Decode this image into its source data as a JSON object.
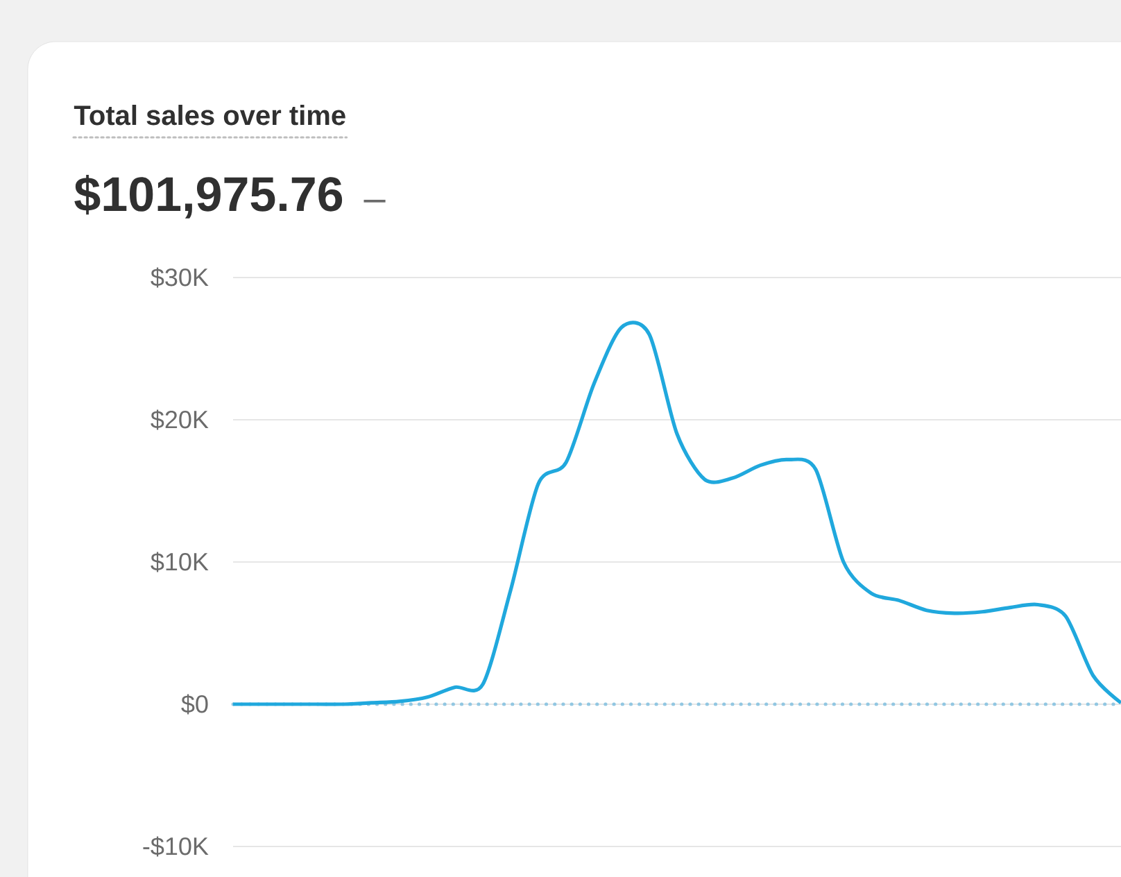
{
  "chart_data": {
    "type": "line",
    "title": "Total sales over time",
    "subtitle": "$101,975.76",
    "annotations": [
      "–"
    ],
    "categories": [
      null,
      null,
      null,
      null,
      null,
      null,
      null,
      null,
      null,
      null,
      null,
      null,
      null,
      null,
      null,
      null,
      null,
      null,
      null,
      null,
      null,
      null,
      null,
      null,
      null,
      null,
      null,
      null,
      null,
      null,
      null,
      null,
      null
    ],
    "series": [
      {
        "color": "#20a8dd",
        "values": [
          0,
          0,
          0,
          0,
          0,
          100,
          200,
          500,
          1200,
          1400,
          8000,
          15500,
          17000,
          22500,
          26500,
          26000,
          19000,
          15800,
          15900,
          16800,
          17200,
          16500,
          10000,
          7800,
          7300,
          6600,
          6400,
          6500,
          6800,
          7000,
          6200,
          2000,
          100
        ]
      }
    ],
    "ylim": [
      -10000,
      30000
    ],
    "yticks": [
      {
        "value": -10000,
        "label": "-$10K"
      },
      {
        "value": 0,
        "label": "$0"
      },
      {
        "value": 10000,
        "label": "$10K"
      },
      {
        "value": 20000,
        "label": "$20K"
      },
      {
        "value": 30000,
        "label": "$30K"
      }
    ],
    "grid": "y",
    "marker": "none",
    "line_style": "solid",
    "ref_lines": [
      {
        "axis": "y",
        "value": 0,
        "color": "#92c7e2",
        "line_style": "dotted"
      }
    ]
  }
}
